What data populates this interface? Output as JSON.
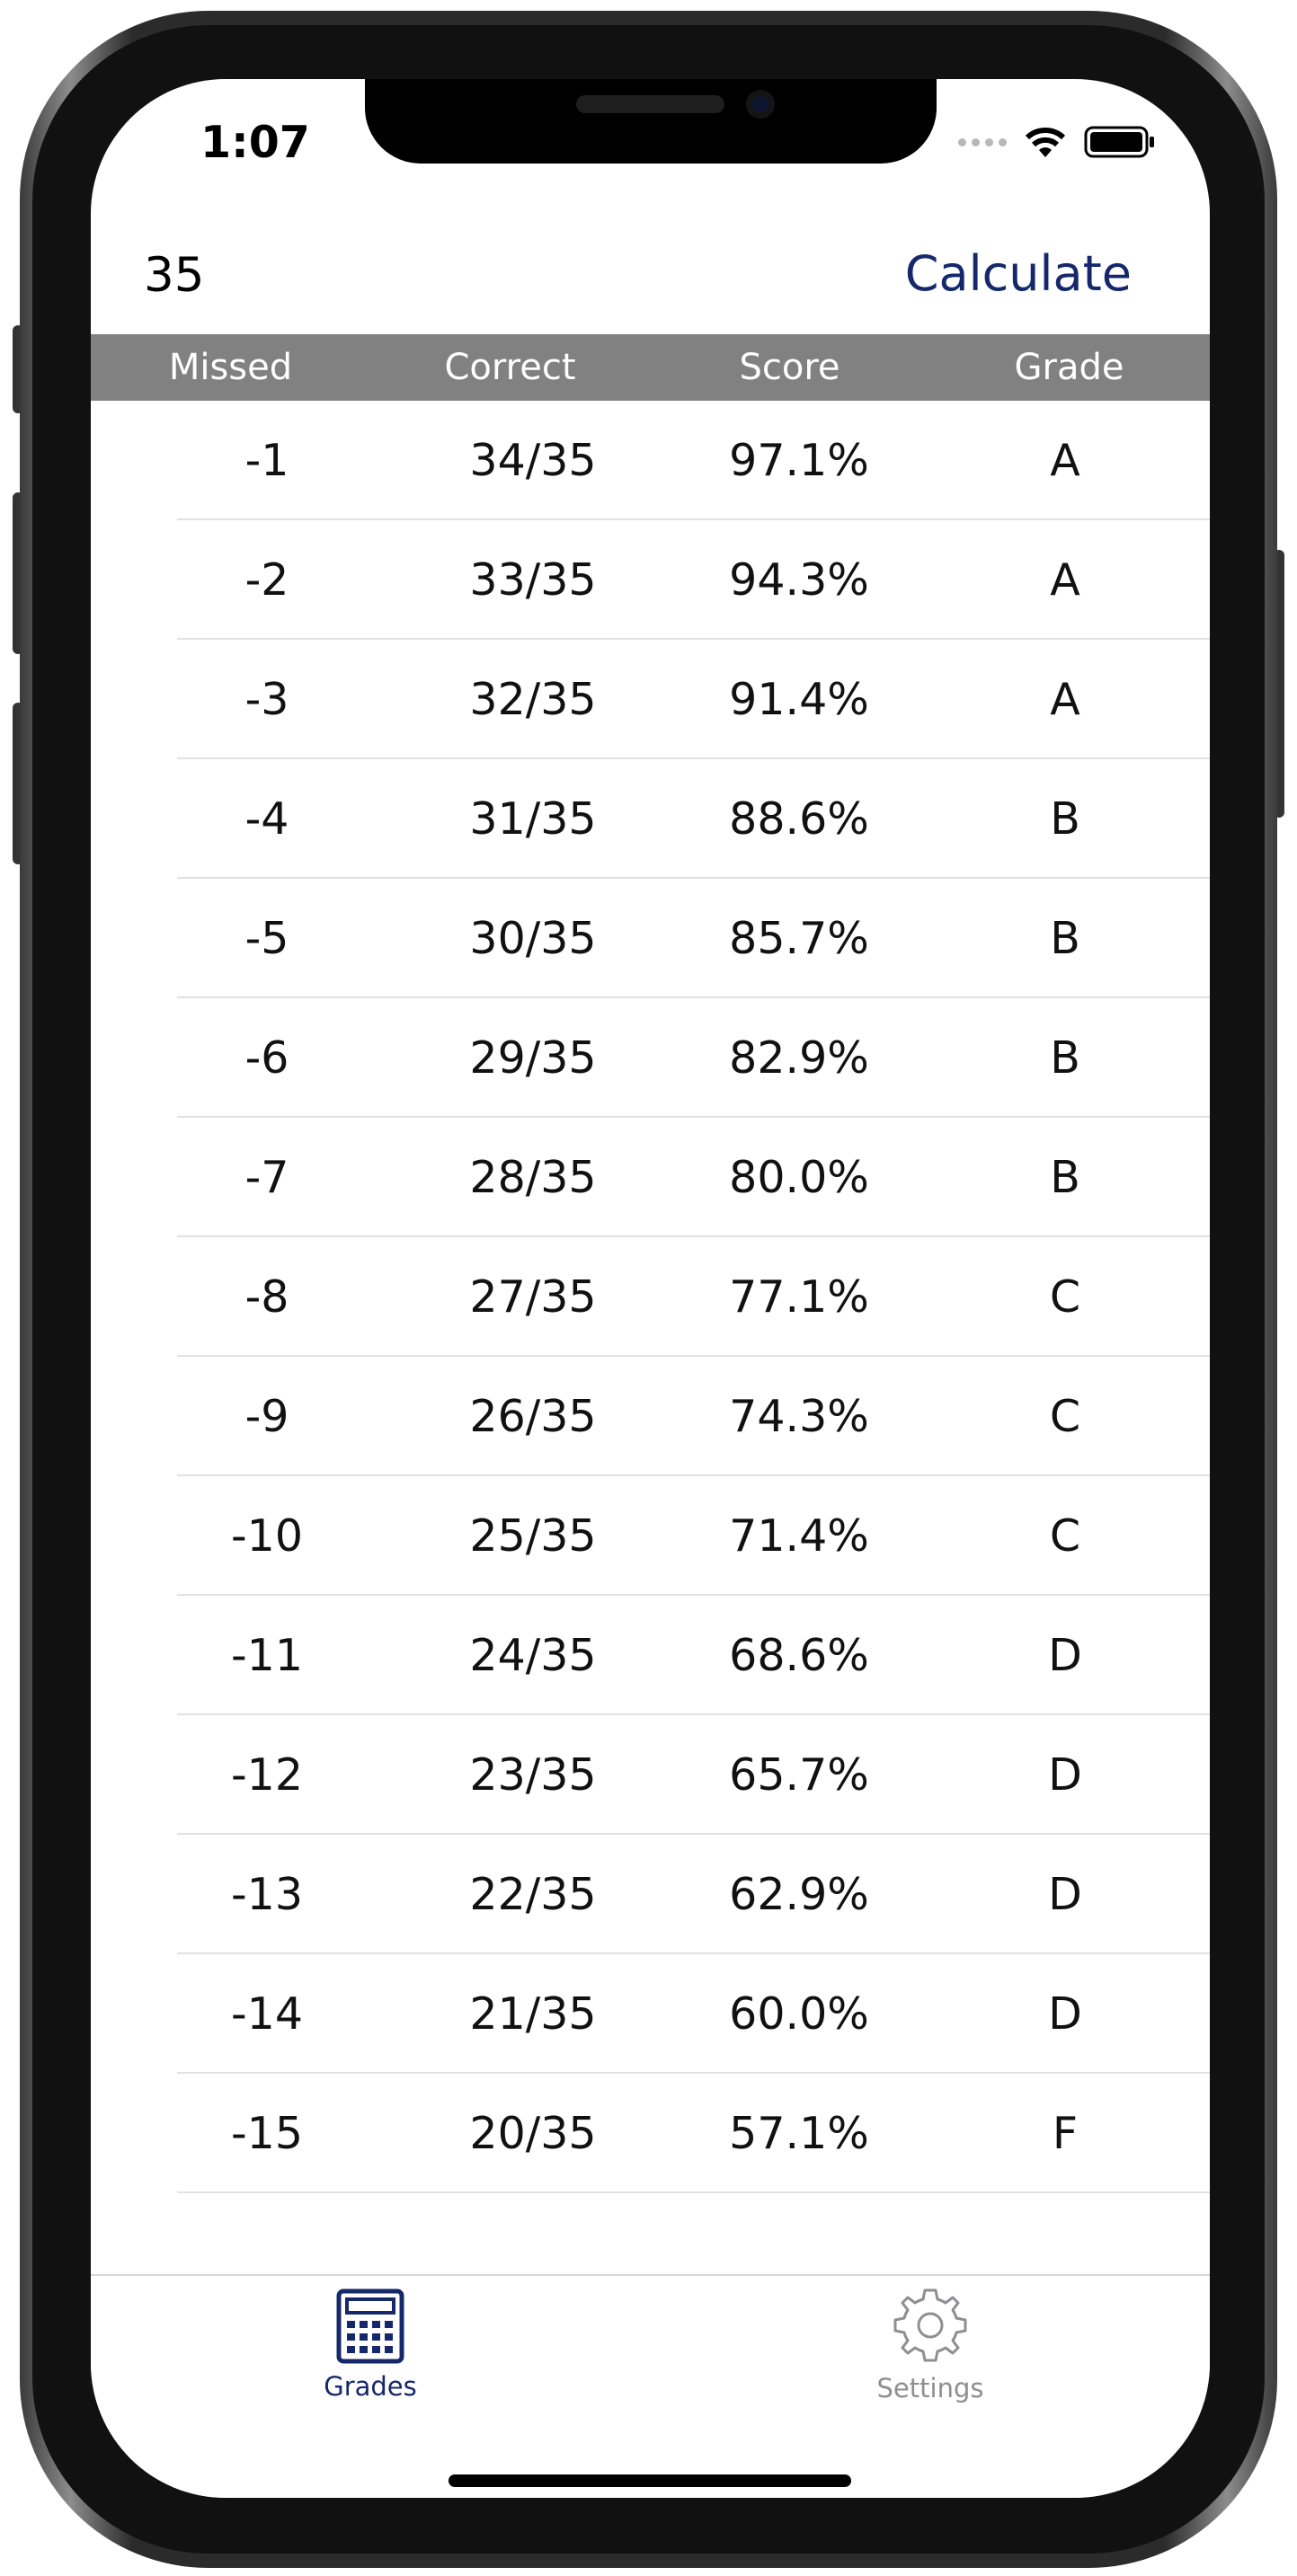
{
  "status_bar": {
    "time": "1:07"
  },
  "nav": {
    "count": "35",
    "calculate_label": "Calculate"
  },
  "table": {
    "columns": [
      "Missed",
      "Correct",
      "Score",
      "Grade"
    ],
    "rows": [
      [
        "-1",
        "34/35",
        "97.1%",
        "A"
      ],
      [
        "-2",
        "33/35",
        "94.3%",
        "A"
      ],
      [
        "-3",
        "32/35",
        "91.4%",
        "A"
      ],
      [
        "-4",
        "31/35",
        "88.6%",
        "B"
      ],
      [
        "-5",
        "30/35",
        "85.7%",
        "B"
      ],
      [
        "-6",
        "29/35",
        "82.9%",
        "B"
      ],
      [
        "-7",
        "28/35",
        "80.0%",
        "B"
      ],
      [
        "-8",
        "27/35",
        "77.1%",
        "C"
      ],
      [
        "-9",
        "26/35",
        "74.3%",
        "C"
      ],
      [
        "-10",
        "25/35",
        "71.4%",
        "C"
      ],
      [
        "-11",
        "24/35",
        "68.6%",
        "D"
      ],
      [
        "-12",
        "23/35",
        "65.7%",
        "D"
      ],
      [
        "-13",
        "22/35",
        "62.9%",
        "D"
      ],
      [
        "-14",
        "21/35",
        "60.0%",
        "D"
      ],
      [
        "-15",
        "20/35",
        "57.1%",
        "F"
      ]
    ]
  },
  "tab_bar": {
    "grades": {
      "label": "Grades",
      "icon": "calculator-icon",
      "selected": true
    },
    "settings": {
      "label": "Settings",
      "icon": "gear-icon",
      "selected": false
    }
  },
  "colors": {
    "accent": "#15286b",
    "header_bg": "#818181",
    "inactive": "#8e8e93"
  }
}
